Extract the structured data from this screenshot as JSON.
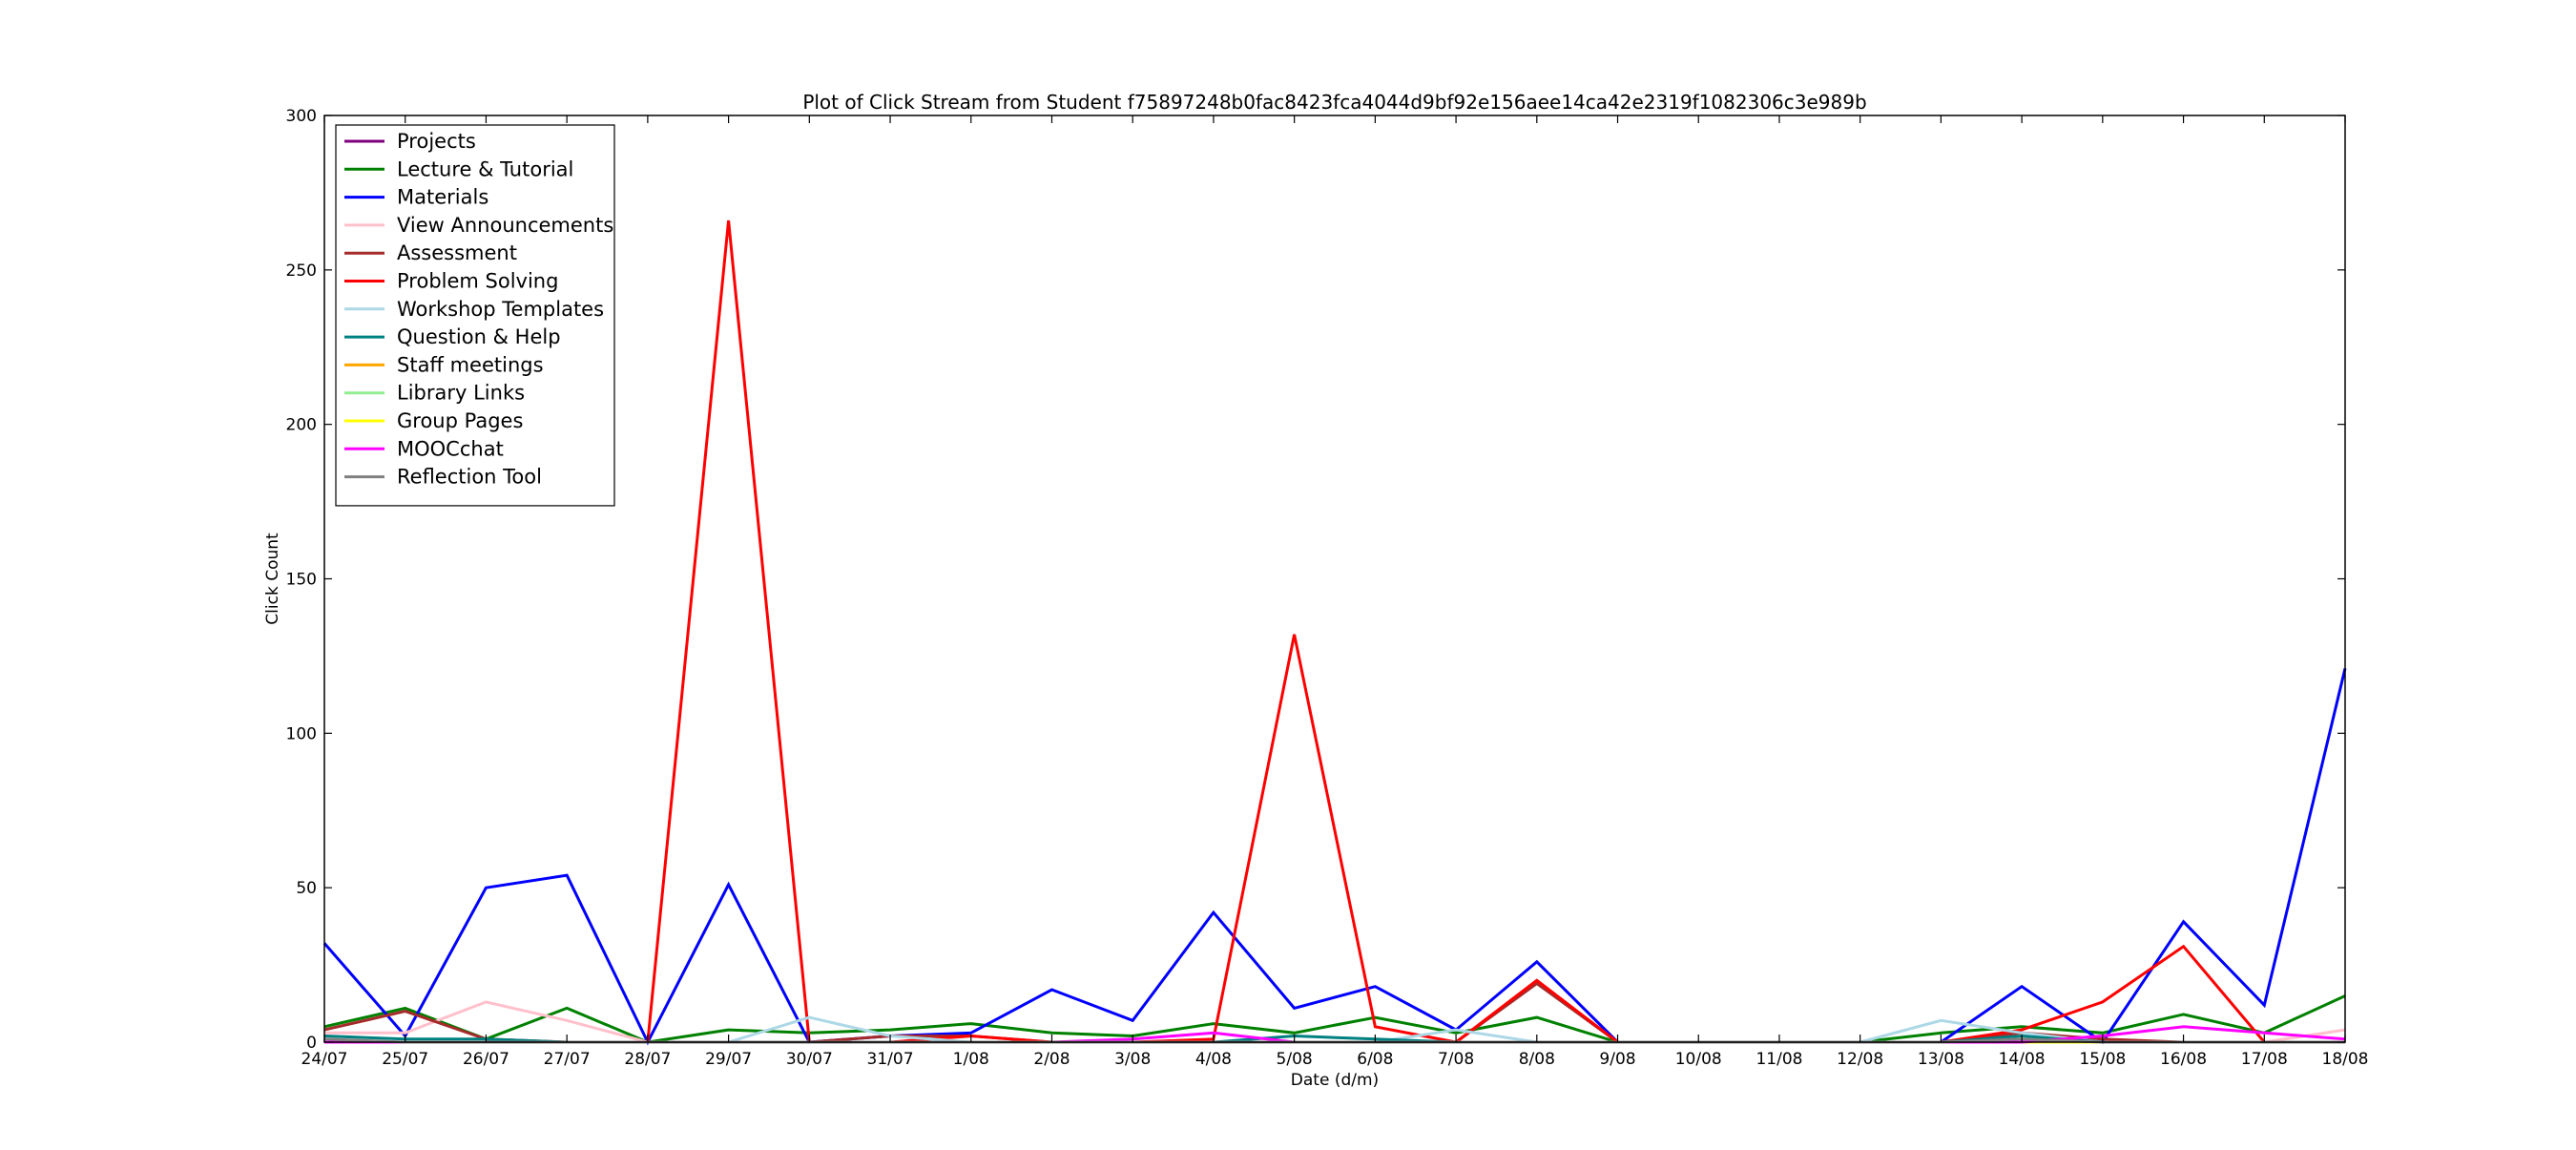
{
  "chart_data": {
    "type": "line",
    "title": "Plot of Click Stream from Student f75897248b0fac8423fca4044d9bf92e156aee14ca42e2319f1082306c3e989b",
    "xlabel": "Date (d/m)",
    "ylabel": "Click Count",
    "ylim": [
      0,
      300
    ],
    "yticks": [
      0,
      50,
      100,
      150,
      200,
      250,
      300
    ],
    "grid": false,
    "legend_position": "top-left",
    "x": [
      "24/07",
      "25/07",
      "26/07",
      "27/07",
      "28/07",
      "29/07",
      "30/07",
      "31/07",
      "1/08",
      "2/08",
      "3/08",
      "4/08",
      "5/08",
      "6/08",
      "7/08",
      "8/08",
      "9/08",
      "10/08",
      "11/08",
      "12/08",
      "13/08",
      "14/08",
      "15/08",
      "16/08",
      "17/08",
      "18/08"
    ],
    "series": [
      {
        "name": "Projects",
        "color": "#800080",
        "values": [
          0,
          0,
          0,
          0,
          0,
          0,
          0,
          0,
          0,
          0,
          0,
          0,
          0,
          0,
          0,
          0,
          0,
          0,
          0,
          0,
          0,
          0,
          0,
          0,
          0,
          0
        ]
      },
      {
        "name": "Lecture & Tutorial",
        "color": "#008000",
        "values": [
          5,
          11,
          1,
          11,
          0,
          4,
          3,
          4,
          6,
          3,
          2,
          6,
          3,
          8,
          3,
          8,
          0,
          0,
          0,
          0,
          3,
          5,
          3,
          9,
          3,
          15
        ]
      },
      {
        "name": "Materials",
        "color": "#0000ff",
        "values": [
          32,
          2,
          50,
          54,
          0,
          51,
          0,
          2,
          3,
          17,
          7,
          42,
          11,
          18,
          4,
          26,
          0,
          0,
          0,
          0,
          0,
          18,
          0,
          39,
          12,
          121
        ]
      },
      {
        "name": "View Announcements",
        "color": "#ffc0cb",
        "values": [
          3,
          3,
          13,
          7,
          0,
          0,
          0,
          0,
          0,
          0,
          0,
          0,
          0,
          0,
          0,
          0,
          0,
          0,
          0,
          0,
          0,
          0,
          0,
          0,
          0,
          4
        ]
      },
      {
        "name": "Assessment",
        "color": "#a52a2a",
        "values": [
          4,
          10,
          1,
          0,
          0,
          0,
          0,
          2,
          2,
          0,
          0,
          0,
          0,
          0,
          0,
          19,
          0,
          0,
          0,
          0,
          0,
          3,
          1,
          0,
          0,
          0
        ]
      },
      {
        "name": "Problem Solving",
        "color": "#ff0000",
        "values": [
          0,
          0,
          0,
          0,
          0,
          266,
          0,
          0,
          2,
          0,
          0,
          1,
          132,
          5,
          0,
          20,
          0,
          0,
          0,
          0,
          0,
          4,
          13,
          31,
          0,
          0
        ]
      },
      {
        "name": "Workshop Templates",
        "color": "#add8e6",
        "values": [
          0,
          0,
          0,
          0,
          0,
          0,
          8,
          2,
          0,
          0,
          0,
          0,
          0,
          0,
          4,
          0,
          0,
          0,
          0,
          0,
          7,
          3,
          0,
          0,
          0,
          0
        ]
      },
      {
        "name": "Question & Help",
        "color": "#008080",
        "values": [
          2,
          1,
          1,
          0,
          0,
          0,
          0,
          0,
          0,
          0,
          0,
          0,
          2,
          1,
          0,
          0,
          0,
          0,
          0,
          0,
          0,
          2,
          0,
          0,
          0,
          0
        ]
      },
      {
        "name": "Staff meetings",
        "color": "#ffa500",
        "values": [
          0,
          0,
          0,
          0,
          0,
          0,
          0,
          0,
          0,
          0,
          0,
          0,
          0,
          0,
          0,
          0,
          0,
          0,
          0,
          0,
          0,
          0,
          0,
          0,
          0,
          0
        ]
      },
      {
        "name": "Library Links",
        "color": "#90ee90",
        "values": [
          0,
          0,
          0,
          0,
          0,
          0,
          0,
          0,
          0,
          0,
          0,
          0,
          0,
          0,
          0,
          0,
          0,
          0,
          0,
          0,
          0,
          0,
          0,
          0,
          0,
          0
        ]
      },
      {
        "name": "Group Pages",
        "color": "#ffff00",
        "values": [
          0,
          0,
          0,
          0,
          0,
          0,
          0,
          0,
          0,
          0,
          0,
          0,
          0,
          0,
          0,
          0,
          0,
          0,
          0,
          0,
          0,
          0,
          0,
          0,
          0,
          0
        ]
      },
      {
        "name": "MOOCchat",
        "color": "#ff00ff",
        "values": [
          0,
          0,
          0,
          0,
          0,
          0,
          0,
          0,
          0,
          0,
          1,
          3,
          0,
          0,
          0,
          0,
          0,
          0,
          0,
          0,
          0,
          0,
          2,
          5,
          3,
          1
        ]
      },
      {
        "name": "Reflection Tool",
        "color": "#808080",
        "values": [
          1,
          0,
          0,
          0,
          0,
          0,
          0,
          0,
          0,
          0,
          0,
          0,
          0,
          0,
          0,
          0,
          0,
          0,
          0,
          0,
          0,
          1,
          0,
          0,
          0,
          0
        ]
      }
    ]
  }
}
